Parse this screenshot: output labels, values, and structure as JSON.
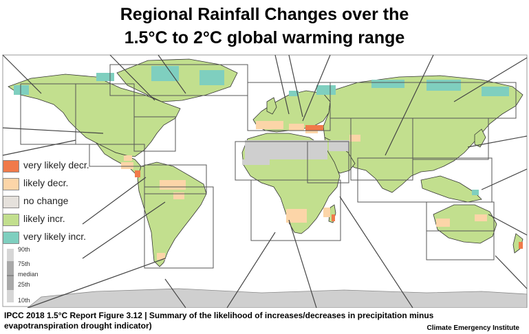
{
  "title": {
    "line1": "Regional Rainfall Changes over the",
    "line2": "1.5°C to 2°C global warming range"
  },
  "legend": {
    "items": [
      {
        "label": "very likely decr.",
        "color": "#f07a4a"
      },
      {
        "label": "likely decr.",
        "color": "#fcd5a8"
      },
      {
        "label": "no change",
        "color": "#e5e1dc"
      },
      {
        "label": "likely incr.",
        "color": "#c2df8e"
      },
      {
        "label": "very likely incr.",
        "color": "#7fcfbf"
      }
    ],
    "percentiles": [
      "90th",
      "75th",
      "median",
      "25th",
      "10th"
    ]
  },
  "colors": {
    "land": "#c2df8e",
    "very_likely_incr": "#7fcfbf",
    "likely_decr": "#fcd5a8",
    "very_likely_decr": "#f07a4a",
    "no_data": "#cfcfcf",
    "region_box": "#555555"
  },
  "caption": {
    "line1": "IPCC 2018  1.5°C  Report Figure 3.12  | Summary of the likelihood of increases/decreases in precipitation minus",
    "line2": "evapotranspiration drought indicator)"
  },
  "credit": "Climate Emergency Institute"
}
